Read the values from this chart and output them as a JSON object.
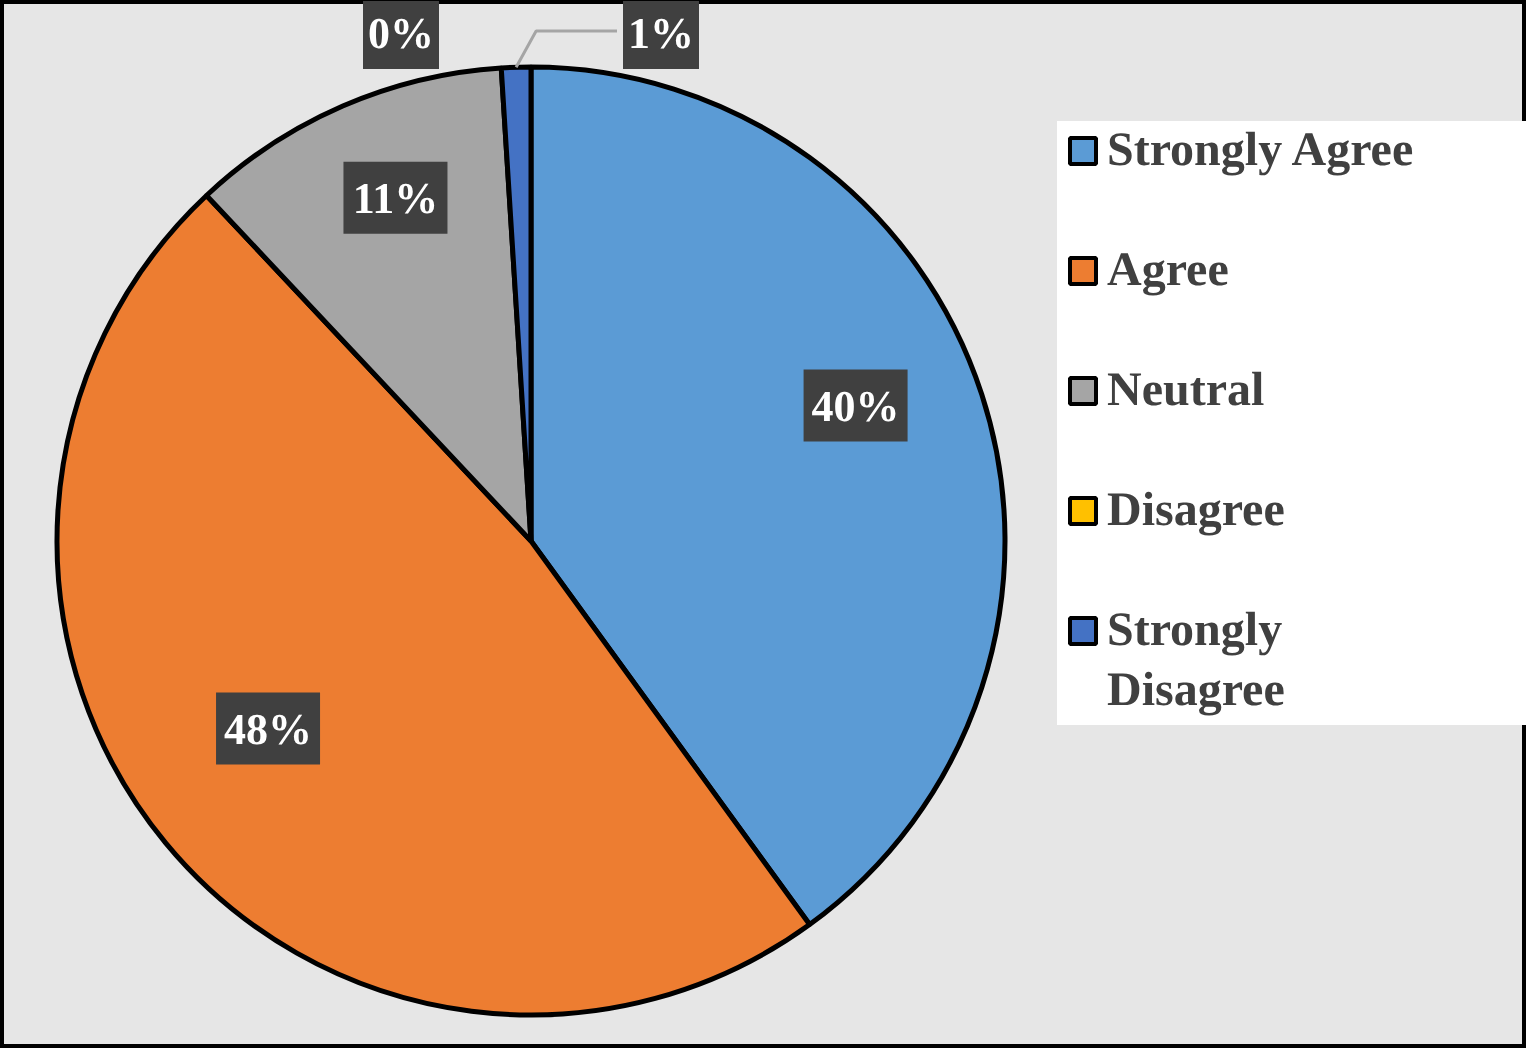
{
  "chart_data": {
    "type": "pie",
    "categories": [
      "Strongly Agree",
      "Agree",
      "Neutral",
      "Disagree",
      "Strongly Disagree"
    ],
    "values": [
      40,
      48,
      11,
      0,
      1
    ],
    "colors": [
      "#5b9bd5",
      "#ed7d31",
      "#a5a5a5",
      "#ffc000",
      "#4472c4"
    ],
    "value_labels": [
      "40%",
      "48%",
      "11%",
      "0%",
      "1%"
    ],
    "legend": "right"
  }
}
